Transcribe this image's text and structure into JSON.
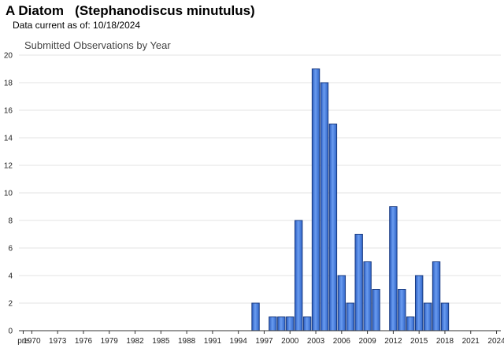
{
  "header": {
    "title": "A Diatom   (Stephanodiscus minutulus)",
    "subtitle": "Data current as of: 10/18/2024"
  },
  "colors": {
    "bar": "#3a73d6",
    "bar_edge": "#1a3b80"
  },
  "chart_data": {
    "type": "bar",
    "title": "Submitted Observations by Year",
    "xlabel": "",
    "ylabel": "",
    "ylim": [
      0,
      20
    ],
    "yticks": [
      0,
      2,
      4,
      6,
      8,
      10,
      12,
      14,
      16,
      18,
      20
    ],
    "grid": true,
    "xtick_labels": [
      "pre",
      "1970",
      "1973",
      "1976",
      "1979",
      "1982",
      "1985",
      "1988",
      "1991",
      "1994",
      "1997",
      "2000",
      "2003",
      "2006",
      "2009",
      "2012",
      "2015",
      "2018",
      "2021",
      "2024"
    ],
    "categories": [
      "pre",
      "1970",
      "1971",
      "1972",
      "1973",
      "1974",
      "1975",
      "1976",
      "1977",
      "1978",
      "1979",
      "1980",
      "1981",
      "1982",
      "1983",
      "1984",
      "1985",
      "1986",
      "1987",
      "1988",
      "1989",
      "1990",
      "1991",
      "1992",
      "1993",
      "1994",
      "1995",
      "1996",
      "1997",
      "1998",
      "1999",
      "2000",
      "2001",
      "2002",
      "2003",
      "2004",
      "2005",
      "2006",
      "2007",
      "2008",
      "2009",
      "2010",
      "2011",
      "2012",
      "2013",
      "2014",
      "2015",
      "2016",
      "2017",
      "2018",
      "2019",
      "2020",
      "2021",
      "2022",
      "2023",
      "2024"
    ],
    "values": [
      0,
      0,
      0,
      0,
      0,
      0,
      0,
      0,
      0,
      0,
      0,
      0,
      0,
      0,
      0,
      0,
      0,
      0,
      0,
      0,
      0,
      0,
      0,
      0,
      0,
      0,
      0,
      2,
      0,
      1,
      1,
      1,
      8,
      1,
      19,
      18,
      15,
      4,
      2,
      7,
      5,
      3,
      0,
      9,
      3,
      1,
      4,
      2,
      5,
      2,
      0,
      0,
      0,
      0,
      0,
      0
    ]
  }
}
